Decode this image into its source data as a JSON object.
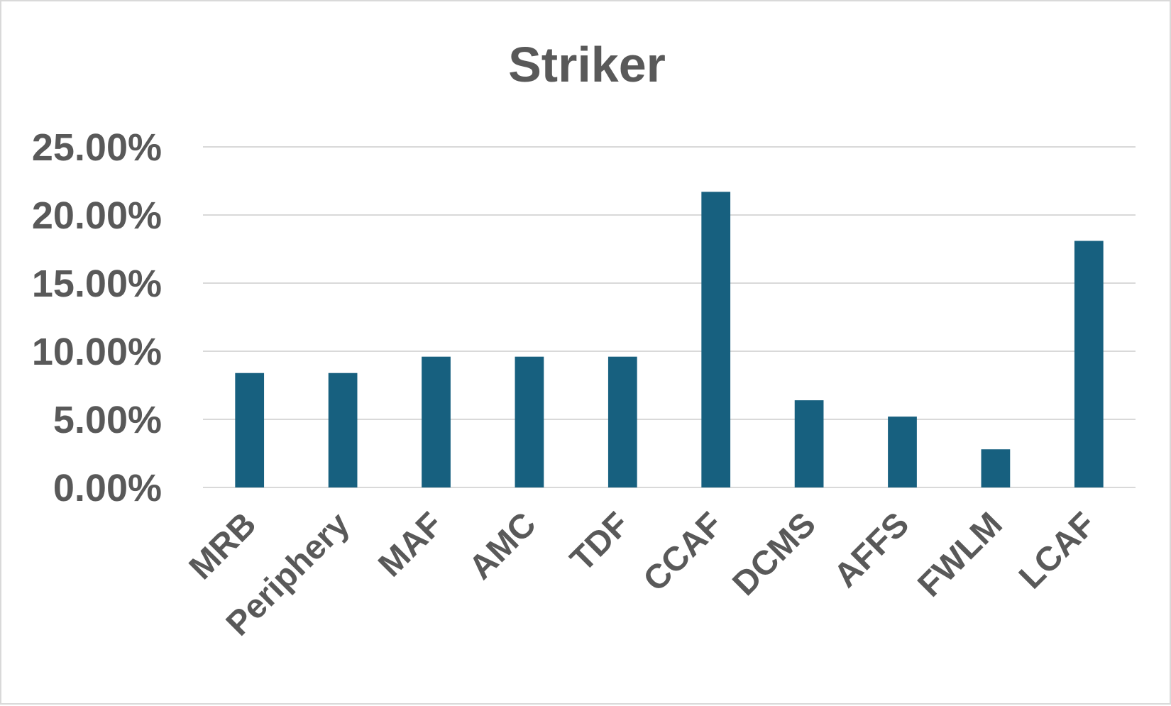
{
  "chart_data": {
    "type": "bar",
    "title": "Striker",
    "xlabel": "",
    "ylabel": "",
    "ylim": [
      0,
      25
    ],
    "yticks": [
      0,
      5,
      10,
      15,
      20,
      25
    ],
    "ytick_labels": [
      "0.00%",
      "5.00%",
      "10.00%",
      "15.00%",
      "20.00%",
      "25.00%"
    ],
    "grid": true,
    "legend": "none",
    "bar_color": "#17607f",
    "categories": [
      "MRB",
      "Periphery",
      "MAF",
      "AMC",
      "TDF",
      "CCAF",
      "DCMS",
      "AFFS",
      "FWLM",
      "LCAF"
    ],
    "values": [
      8.4,
      8.4,
      9.6,
      9.6,
      9.6,
      21.7,
      6.4,
      5.2,
      2.8,
      18.1
    ]
  }
}
